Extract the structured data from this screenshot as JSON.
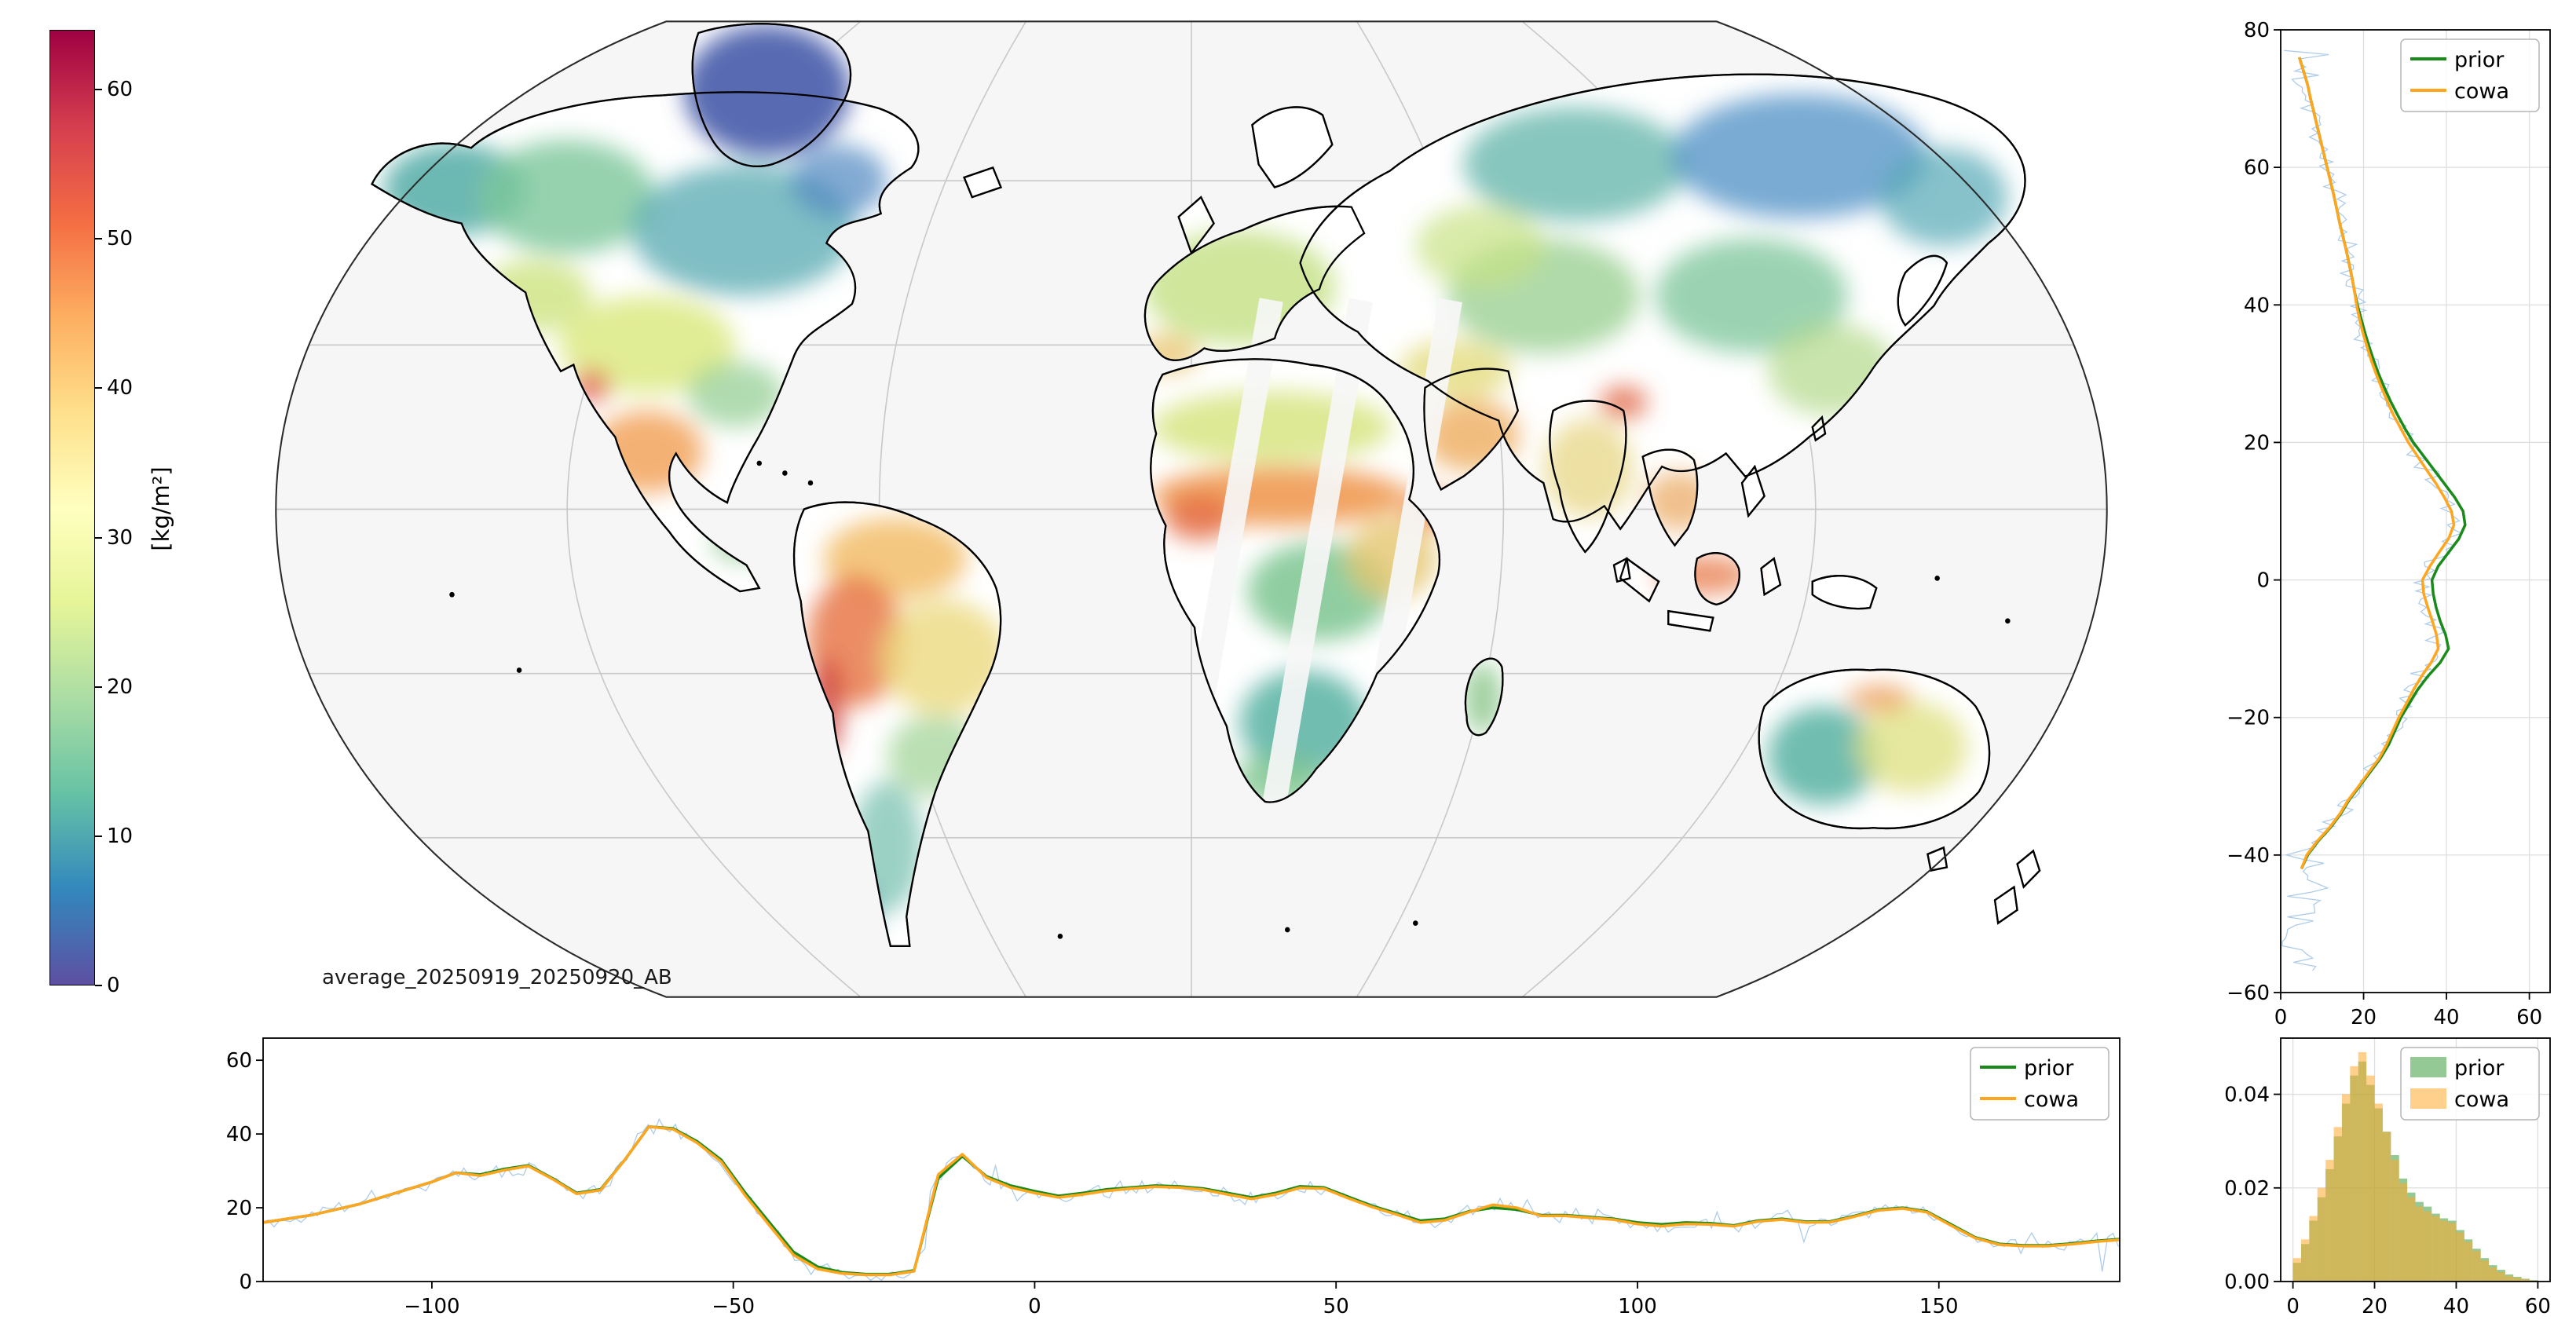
{
  "figure": {
    "background": "#ffffff",
    "map_caption": "average_20250919_20250920_AB"
  },
  "colorbar": {
    "label": "[kg/m²]",
    "ticks": [
      0,
      10,
      20,
      30,
      40,
      50,
      60
    ],
    "tick_labels": [
      "0",
      "10",
      "20",
      "30",
      "40",
      "50",
      "60"
    ],
    "vmin": 0,
    "vmax": 64,
    "palette_name": "spectral-reversed",
    "colors": [
      "#5e4fa2",
      "#3288bd",
      "#66c2a5",
      "#abdda4",
      "#e6f598",
      "#ffffbf",
      "#fee08b",
      "#fdae61",
      "#f46d43",
      "#d53e4f",
      "#9e0142"
    ]
  },
  "map": {
    "projection": "robinson-like",
    "ocean_color": "#f6f6f6",
    "land_color": "#ffffff",
    "coast_color": "#000000",
    "graticule_color": "#c9c9c9"
  },
  "chart_data": [
    {
      "id": "lat-profile",
      "type": "line",
      "orientation": "value-on-x-latitude-on-y",
      "xlim": [
        0,
        65
      ],
      "ylim": [
        -60,
        80
      ],
      "xticks": [
        0,
        20,
        40,
        60
      ],
      "xtick_labels": [
        "0",
        "20",
        "40",
        "60"
      ],
      "yticks": [
        -60,
        -40,
        -20,
        0,
        20,
        40,
        60,
        80
      ],
      "ytick_labels": [
        "−60",
        "−40",
        "−20",
        "0",
        "20",
        "40",
        "60",
        "80"
      ],
      "legend": [
        "prior",
        "cowa"
      ],
      "legend_position": "top-right",
      "grid": true,
      "noise_color": "#a9c9e8",
      "latitudes": [
        76,
        74,
        72,
        70,
        68,
        66,
        64,
        62,
        60,
        58,
        56,
        54,
        52,
        50,
        48,
        46,
        44,
        42,
        40,
        38,
        36,
        34,
        32,
        30,
        28,
        26,
        24,
        22,
        20,
        18,
        16,
        14,
        12,
        10,
        8,
        6,
        4,
        2,
        0,
        -2,
        -4,
        -6,
        -8,
        -10,
        -12,
        -14,
        -16,
        -18,
        -20,
        -22,
        -24,
        -26,
        -28,
        -30,
        -32,
        -34,
        -36,
        -38,
        -40,
        -42
      ],
      "series": [
        {
          "name": "prior",
          "color": "#1a8a1a",
          "values": [
            4.5,
            5.5,
            6.5,
            7.2,
            8,
            8.8,
            9.6,
            10.4,
            11.2,
            12,
            12.8,
            13.5,
            14.2,
            15,
            15.8,
            16.5,
            17.2,
            17.8,
            18.5,
            19.4,
            20.3,
            21.3,
            22.4,
            23.6,
            25,
            26.5,
            28.2,
            30,
            32,
            34.5,
            37,
            39.5,
            42,
            44,
            44.5,
            43,
            40.5,
            38,
            36.5,
            36.8,
            37.5,
            38.5,
            39.8,
            40.5,
            38.5,
            35.5,
            33,
            31,
            29,
            27.5,
            26,
            24,
            21.5,
            19,
            16.5,
            14.5,
            12,
            9,
            6.5,
            5
          ]
        },
        {
          "name": "cowa",
          "color": "#ffa51e",
          "values": [
            4.5,
            5.5,
            6.5,
            7.2,
            8,
            8.8,
            9.6,
            10.4,
            11.2,
            12,
            12.8,
            13.5,
            14.2,
            15,
            15.8,
            16.5,
            17.2,
            17.8,
            18.3,
            19,
            19.8,
            20.8,
            21.8,
            23,
            24.3,
            25.7,
            27.2,
            29,
            30.8,
            33,
            35.2,
            37.5,
            39.5,
            41.2,
            41.8,
            40.5,
            38.2,
            36,
            34.2,
            34.5,
            35.5,
            36.6,
            37.6,
            38,
            36.3,
            34,
            32,
            30.3,
            28.5,
            27,
            25.5,
            23.7,
            21.2,
            18.8,
            16.3,
            14.3,
            11.8,
            8.8,
            6.3,
            5
          ]
        }
      ]
    },
    {
      "id": "lon-profile",
      "type": "line",
      "orientation": "longitude-on-x-value-on-y",
      "xlim": [
        -128,
        180
      ],
      "ylim": [
        0,
        66
      ],
      "xticks": [
        -100,
        -50,
        0,
        50,
        100,
        150
      ],
      "xtick_labels": [
        "−100",
        "−50",
        "0",
        "50",
        "100",
        "150"
      ],
      "yticks": [
        0,
        20,
        40,
        60
      ],
      "ytick_labels": [
        "0",
        "20",
        "40",
        "60"
      ],
      "legend": [
        "prior",
        "cowa"
      ],
      "legend_position": "top-right",
      "grid": false,
      "noise_color": "#a9c9e8",
      "x": [
        -128,
        -124,
        -120,
        -116,
        -112,
        -108,
        -104,
        -100,
        -96,
        -92,
        -88,
        -84,
        -80,
        -76,
        -72,
        -68,
        -64,
        -60,
        -56,
        -52,
        -48,
        -44,
        -40,
        -36,
        -32,
        -28,
        -24,
        -20,
        -16,
        -12,
        -8,
        -4,
        0,
        4,
        8,
        12,
        16,
        20,
        24,
        28,
        32,
        36,
        40,
        44,
        48,
        52,
        56,
        60,
        64,
        68,
        72,
        76,
        80,
        84,
        88,
        92,
        96,
        100,
        104,
        108,
        112,
        116,
        120,
        124,
        128,
        132,
        136,
        140,
        144,
        148,
        152,
        156,
        160,
        164,
        168,
        172,
        176,
        180
      ],
      "series": [
        {
          "name": "prior",
          "color": "#1a8a1a",
          "values": [
            16,
            17,
            18,
            19.5,
            21,
            23,
            25,
            27,
            29.5,
            29,
            30.5,
            31.5,
            28,
            24,
            25,
            33,
            42,
            41.5,
            38,
            33,
            24,
            16,
            8,
            4,
            2.5,
            2,
            2,
            3,
            28,
            34,
            28.5,
            26,
            24.5,
            23.2,
            24,
            25,
            25.5,
            26,
            25.8,
            25.2,
            24,
            22.8,
            24,
            25.8,
            25.5,
            23,
            20.5,
            18.5,
            16.5,
            17,
            19,
            20,
            19.5,
            18,
            18,
            17.5,
            17,
            16,
            15.5,
            16,
            15.8,
            15.2,
            16.5,
            17,
            16.2,
            16.3,
            17.8,
            19.5,
            20,
            19,
            15.5,
            12,
            10.2,
            9.8,
            9.8,
            10.3,
            11,
            11.5
          ]
        },
        {
          "name": "cowa",
          "color": "#ffa51e",
          "values": [
            16,
            17,
            18,
            19.5,
            21,
            23,
            25,
            27,
            29.5,
            28.7,
            30.2,
            31.3,
            27.8,
            23.8,
            24.8,
            33,
            42,
            41.3,
            37.6,
            32.5,
            23.3,
            15.2,
            7.2,
            3.4,
            2.2,
            1.8,
            1.8,
            2.8,
            29,
            34.5,
            28.2,
            25.5,
            24,
            22.8,
            23.6,
            24.6,
            25.2,
            25.7,
            25.5,
            24.9,
            23.6,
            22.4,
            23.6,
            25.4,
            25.2,
            22.6,
            20.2,
            18.2,
            16,
            16.6,
            18.8,
            20.8,
            20,
            17.8,
            17.8,
            17.3,
            16.8,
            15.6,
            15,
            15.6,
            15.5,
            15,
            16.3,
            16.8,
            16,
            16.1,
            17.6,
            19.3,
            19.8,
            18.8,
            15.2,
            11.8,
            10,
            9.6,
            9.6,
            10.1,
            10.8,
            11.3
          ]
        }
      ]
    },
    {
      "id": "value-histogram",
      "type": "histogram",
      "xlim": [
        -3,
        63
      ],
      "ylim": [
        0,
        0.052
      ],
      "xticks": [
        0,
        20,
        40,
        60
      ],
      "xtick_labels": [
        "0",
        "20",
        "40",
        "60"
      ],
      "yticks": [
        0,
        0.02,
        0.04
      ],
      "ytick_labels": [
        "0.00",
        "0.02",
        "0.04"
      ],
      "bin_start": 0,
      "bin_width": 2,
      "legend": [
        "prior",
        "cowa"
      ],
      "legend_position": "top-right",
      "grid": true,
      "series": [
        {
          "name": "prior",
          "color": "#3d9a3d",
          "values": [
            0.004,
            0.008,
            0.013,
            0.018,
            0.024,
            0.031,
            0.038,
            0.044,
            0.047,
            0.042,
            0.037,
            0.032,
            0.027,
            0.022,
            0.019,
            0.017,
            0.016,
            0.0145,
            0.0135,
            0.013,
            0.011,
            0.009,
            0.007,
            0.005,
            0.0035,
            0.0025,
            0.0015,
            0.001,
            0.0006,
            0.0003
          ]
        },
        {
          "name": "cowa",
          "color": "#ffaa2b",
          "values": [
            0.005,
            0.009,
            0.014,
            0.02,
            0.026,
            0.033,
            0.04,
            0.046,
            0.049,
            0.044,
            0.038,
            0.032,
            0.026,
            0.021,
            0.018,
            0.016,
            0.015,
            0.014,
            0.013,
            0.0125,
            0.0105,
            0.0085,
            0.0065,
            0.0045,
            0.003,
            0.002,
            0.0012,
            0.0008,
            0.0005,
            0.0002
          ]
        }
      ]
    }
  ]
}
